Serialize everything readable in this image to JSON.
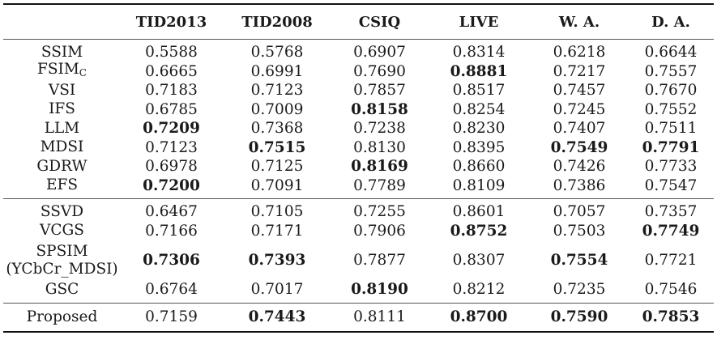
{
  "columns": [
    "",
    "TID2013",
    "TID2008",
    "CSIQ",
    "LIVE",
    "W. A.",
    "D. A."
  ],
  "groups": [
    [
      {
        "name": "SSIM",
        "values": [
          "0.5588",
          "0.5768",
          "0.6907",
          "0.8314",
          "0.6218",
          "0.6644"
        ],
        "bold": [
          false,
          false,
          false,
          false,
          false,
          false
        ]
      },
      {
        "name": "FSIM",
        "sub": "C",
        "values": [
          "0.6665",
          "0.6991",
          "0.7690",
          "0.8881",
          "0.7217",
          "0.7557"
        ],
        "bold": [
          false,
          false,
          false,
          true,
          false,
          false
        ]
      },
      {
        "name": "VSI",
        "values": [
          "0.7183",
          "0.7123",
          "0.7857",
          "0.8517",
          "0.7457",
          "0.7670"
        ],
        "bold": [
          false,
          false,
          false,
          false,
          false,
          false
        ]
      },
      {
        "name": "IFS",
        "values": [
          "0.6785",
          "0.7009",
          "0.8158",
          "0.8254",
          "0.7245",
          "0.7552"
        ],
        "bold": [
          false,
          false,
          true,
          false,
          false,
          false
        ]
      },
      {
        "name": "LLM",
        "values": [
          "0.7209",
          "0.7368",
          "0.7238",
          "0.8230",
          "0.7407",
          "0.7511"
        ],
        "bold": [
          true,
          false,
          false,
          false,
          false,
          false
        ]
      },
      {
        "name": "MDSI",
        "values": [
          "0.7123",
          "0.7515",
          "0.8130",
          "0.8395",
          "0.7549",
          "0.7791"
        ],
        "bold": [
          false,
          true,
          false,
          false,
          true,
          true
        ]
      },
      {
        "name": "GDRW",
        "values": [
          "0.6978",
          "0.7125",
          "0.8169",
          "0.8660",
          "0.7426",
          "0.7733"
        ],
        "bold": [
          false,
          false,
          true,
          false,
          false,
          false
        ]
      },
      {
        "name": "EFS",
        "values": [
          "0.7200",
          "0.7091",
          "0.7789",
          "0.8109",
          "0.7386",
          "0.7547"
        ],
        "bold": [
          true,
          false,
          false,
          false,
          false,
          false
        ]
      }
    ],
    [
      {
        "name": "SSVD",
        "values": [
          "0.6467",
          "0.7105",
          "0.7255",
          "0.8601",
          "0.7057",
          "0.7357"
        ],
        "bold": [
          false,
          false,
          false,
          false,
          false,
          false
        ]
      },
      {
        "name": "VCGS",
        "values": [
          "0.7166",
          "0.7171",
          "0.7906",
          "0.8752",
          "0.7503",
          "0.7749"
        ],
        "bold": [
          false,
          false,
          false,
          true,
          false,
          true
        ]
      },
      {
        "name": "SPSIM",
        "name2": "(YCbCr_MDSI)",
        "values": [
          "0.7306",
          "0.7393",
          "0.7877",
          "0.8307",
          "0.7554",
          "0.7721"
        ],
        "bold": [
          true,
          true,
          false,
          false,
          true,
          false
        ]
      },
      {
        "name": "GSC",
        "values": [
          "0.6764",
          "0.7017",
          "0.8190",
          "0.8212",
          "0.7235",
          "0.7546"
        ],
        "bold": [
          false,
          false,
          true,
          false,
          false,
          false
        ]
      }
    ],
    [
      {
        "name": "Proposed",
        "values": [
          "0.7159",
          "0.7443",
          "0.8111",
          "0.8700",
          "0.7590",
          "0.7853"
        ],
        "bold": [
          false,
          true,
          false,
          true,
          true,
          true
        ]
      }
    ]
  ]
}
